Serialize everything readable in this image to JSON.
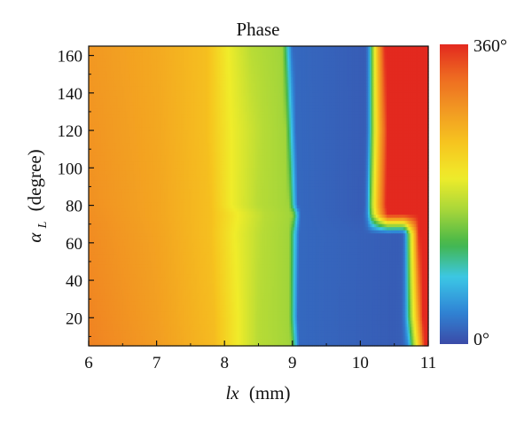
{
  "chart_data": {
    "type": "heatmap",
    "title": "Phase",
    "xlabel_var": "lx",
    "xlabel_unit": "(mm)",
    "ylabel_var": "α",
    "ylabel_sub": "L",
    "ylabel_unit": "(degree)",
    "xlim": [
      6,
      11
    ],
    "ylim": [
      5,
      165
    ],
    "xticks": [
      "6",
      "7",
      "8",
      "9",
      "10",
      "11"
    ],
    "yticks": [
      "20",
      "40",
      "60",
      "80",
      "100",
      "120",
      "140",
      "160"
    ],
    "colorbar": {
      "min_label": "0°",
      "max_label": "360°",
      "min": 0,
      "max": 360
    },
    "colormap": [
      "#3b4ba8",
      "#2f86d6",
      "#3cc7e6",
      "#43b649",
      "#a5d63a",
      "#f0ec2a",
      "#f6c61f",
      "#f29a22",
      "#ee6b21",
      "#e3291f"
    ],
    "phase_profiles": [
      {
        "alpha_deg": 5,
        "points": [
          [
            6.0,
            300
          ],
          [
            7.0,
            278
          ],
          [
            7.85,
            250
          ],
          [
            8.2,
            200
          ],
          [
            8.5,
            170
          ],
          [
            8.98,
            158
          ],
          [
            9.1,
            20
          ],
          [
            10.5,
            12
          ],
          [
            10.62,
            14
          ],
          [
            10.7,
            40
          ],
          [
            10.78,
            150
          ],
          [
            10.88,
            260
          ],
          [
            10.95,
            360
          ],
          [
            11.0,
            360
          ]
        ]
      },
      {
        "alpha_deg": 20,
        "points": [
          [
            6.0,
            298
          ],
          [
            7.0,
            276
          ],
          [
            7.85,
            248
          ],
          [
            8.2,
            200
          ],
          [
            8.5,
            170
          ],
          [
            8.95,
            158
          ],
          [
            9.08,
            20
          ],
          [
            10.5,
            12
          ],
          [
            10.6,
            14
          ],
          [
            10.66,
            40
          ],
          [
            10.74,
            150
          ],
          [
            10.84,
            260
          ],
          [
            10.92,
            360
          ],
          [
            11.0,
            360
          ]
        ]
      },
      {
        "alpha_deg": 65,
        "points": [
          [
            6.0,
            292
          ],
          [
            7.0,
            272
          ],
          [
            7.8,
            246
          ],
          [
            8.15,
            200
          ],
          [
            8.55,
            170
          ],
          [
            8.95,
            158
          ],
          [
            9.1,
            20
          ],
          [
            10.55,
            12
          ],
          [
            10.62,
            14
          ],
          [
            10.66,
            40
          ],
          [
            10.72,
            150
          ],
          [
            10.8,
            260
          ],
          [
            10.86,
            360
          ],
          [
            11.0,
            360
          ]
        ]
      },
      {
        "alpha_deg": 75,
        "points": [
          [
            6.0,
            290
          ],
          [
            7.0,
            270
          ],
          [
            7.8,
            246
          ],
          [
            8.2,
            200
          ],
          [
            8.6,
            170
          ],
          [
            9.0,
            158
          ],
          [
            9.12,
            20
          ],
          [
            10.0,
            12
          ],
          [
            10.05,
            14
          ],
          [
            10.1,
            40
          ],
          [
            10.17,
            150
          ],
          [
            10.28,
            260
          ],
          [
            10.4,
            360
          ],
          [
            11.0,
            360
          ]
        ]
      },
      {
        "alpha_deg": 80,
        "points": [
          [
            6.0,
            288
          ],
          [
            7.0,
            270
          ],
          [
            7.8,
            246
          ],
          [
            8.1,
            200
          ],
          [
            8.5,
            170
          ],
          [
            8.95,
            158
          ],
          [
            9.08,
            20
          ],
          [
            10.02,
            12
          ],
          [
            10.06,
            14
          ],
          [
            10.1,
            40
          ],
          [
            10.16,
            150
          ],
          [
            10.26,
            260
          ],
          [
            10.38,
            360
          ],
          [
            11.0,
            360
          ]
        ]
      },
      {
        "alpha_deg": 120,
        "points": [
          [
            6.0,
            285
          ],
          [
            7.0,
            268
          ],
          [
            7.75,
            246
          ],
          [
            8.1,
            200
          ],
          [
            8.55,
            170
          ],
          [
            8.9,
            158
          ],
          [
            9.05,
            20
          ],
          [
            10.05,
            12
          ],
          [
            10.08,
            14
          ],
          [
            10.12,
            40
          ],
          [
            10.18,
            150
          ],
          [
            10.28,
            260
          ],
          [
            10.4,
            360
          ],
          [
            11.0,
            360
          ]
        ]
      },
      {
        "alpha_deg": 165,
        "points": [
          [
            6.0,
            282
          ],
          [
            7.0,
            266
          ],
          [
            7.75,
            246
          ],
          [
            8.05,
            200
          ],
          [
            8.4,
            170
          ],
          [
            8.85,
            158
          ],
          [
            9.0,
            20
          ],
          [
            10.05,
            12
          ],
          [
            10.08,
            14
          ],
          [
            10.12,
            40
          ],
          [
            10.18,
            150
          ],
          [
            10.26,
            260
          ],
          [
            10.36,
            360
          ],
          [
            11.0,
            360
          ]
        ]
      }
    ]
  }
}
